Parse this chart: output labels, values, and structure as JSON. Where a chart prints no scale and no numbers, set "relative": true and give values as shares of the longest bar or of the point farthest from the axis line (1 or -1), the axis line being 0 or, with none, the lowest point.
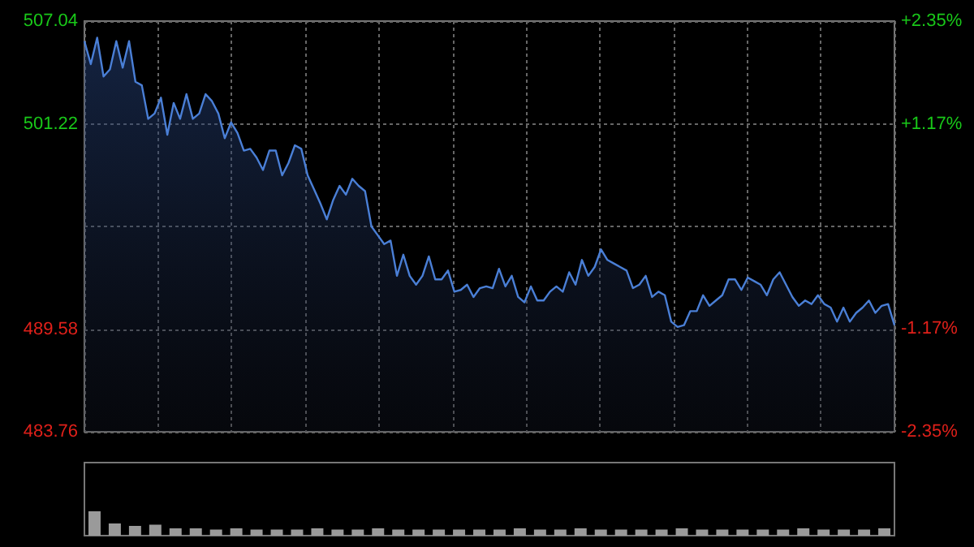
{
  "chart_data": [
    {
      "type": "area",
      "categories": [
        null,
        null,
        null,
        null,
        null,
        null,
        null,
        null,
        null,
        null,
        null,
        null,
        null,
        null,
        null,
        null,
        null,
        null,
        null,
        null,
        null,
        null,
        null,
        null,
        null,
        null,
        null,
        null,
        null,
        null,
        null,
        null,
        null,
        null,
        null,
        null,
        null,
        null,
        null,
        null,
        null,
        null,
        null,
        null,
        null,
        null,
        null,
        null,
        null,
        null,
        null,
        null,
        null,
        null,
        null,
        null,
        null,
        null,
        null,
        null,
        null,
        null,
        null,
        null,
        null,
        null,
        null,
        null,
        null,
        null,
        null,
        null,
        null,
        null,
        null,
        null,
        null,
        null,
        null,
        null,
        null,
        null,
        null,
        null,
        null,
        null,
        null,
        null,
        null,
        null,
        null,
        null,
        null,
        null,
        null,
        null,
        null,
        null,
        null,
        null,
        null,
        null,
        null,
        null,
        null,
        null,
        null,
        null,
        null,
        null,
        null,
        null,
        null,
        null,
        null,
        null,
        null,
        null,
        null,
        null,
        null,
        null,
        null,
        null,
        null,
        null,
        null,
        null
      ],
      "series": [
        {
          "color": "#4a7fd6",
          "values": [
            505.9,
            504.6,
            506.1,
            503.9,
            504.3,
            505.9,
            504.4,
            505.9,
            503.6,
            503.4,
            501.5,
            501.8,
            502.7,
            500.6,
            502.4,
            501.5,
            502.9,
            501.5,
            501.8,
            502.9,
            502.5,
            501.8,
            500.4,
            501.3,
            500.7,
            499.7,
            499.8,
            499.3,
            498.6,
            499.7,
            499.7,
            498.3,
            499.0,
            500.0,
            499.8,
            498.3,
            497.5,
            496.7,
            495.8,
            496.9,
            497.7,
            497.2,
            498.1,
            497.7,
            497.4,
            495.4,
            494.9,
            494.4,
            494.6,
            492.6,
            493.8,
            492.6,
            492.1,
            492.6,
            493.7,
            492.4,
            492.4,
            492.9,
            491.7,
            491.8,
            492.1,
            491.4,
            491.9,
            492.0,
            491.9,
            493.0,
            492.0,
            492.6,
            491.4,
            491.1,
            492.0,
            491.2,
            491.2,
            491.7,
            492.0,
            491.7,
            492.8,
            492.1,
            493.5,
            492.6,
            493.1,
            494.1,
            493.5,
            493.3,
            493.1,
            492.9,
            491.9,
            492.1,
            492.6,
            491.4,
            491.7,
            491.5,
            490.0,
            489.7,
            489.8,
            490.6,
            490.6,
            491.5,
            490.9,
            491.2,
            491.5,
            492.4,
            492.4,
            491.8,
            492.5,
            492.3,
            492.1,
            491.5,
            492.4,
            492.8,
            492.1,
            491.4,
            490.9,
            491.2,
            491.0,
            491.5,
            491.0,
            490.8,
            490.0,
            490.8,
            490.0,
            490.5,
            490.8,
            491.2,
            490.5,
            490.9,
            491.0,
            489.8
          ]
        }
      ],
      "ylim": [
        483.76,
        507.04
      ],
      "yticks": [
        483.76,
        489.58,
        {
          "value": 495.4,
          "label": null
        },
        501.22,
        507.04
      ],
      "y2lim": [
        -2.35,
        2.35
      ],
      "y2ticks": [
        {
          "value": -2.35,
          "label": "-2.35%"
        },
        {
          "value": -1.17,
          "label": "-1.17%"
        },
        {
          "value": 0,
          "label": null
        },
        {
          "value": 1.17,
          "label": "+1.17%"
        },
        {
          "value": 2.35,
          "label": "+2.35%"
        }
      ],
      "grid": true
    },
    {
      "type": "bar",
      "relative": true,
      "categories": [
        null,
        null,
        null,
        null,
        null,
        null,
        null,
        null,
        null,
        null,
        null,
        null,
        null,
        null,
        null,
        null,
        null,
        null,
        null,
        null,
        null,
        null,
        null,
        null,
        null,
        null,
        null,
        null,
        null,
        null,
        null,
        null,
        null,
        null,
        null,
        null,
        null,
        null,
        null,
        null
      ],
      "values": [
        1,
        0.5,
        0.4,
        0.45,
        0.3,
        0.3,
        0.25,
        0.3,
        0.25,
        0.25,
        0.25,
        0.3,
        0.25,
        0.25,
        0.3,
        0.25,
        0.25,
        0.25,
        0.25,
        0.25,
        0.25,
        0.3,
        0.25,
        0.25,
        0.3,
        0.25,
        0.25,
        0.25,
        0.25,
        0.3,
        0.25,
        0.25,
        0.25,
        0.25,
        0.25,
        0.3,
        0.25,
        0.25,
        0.25,
        0.3
      ],
      "color": "#9a9a9a"
    }
  ]
}
